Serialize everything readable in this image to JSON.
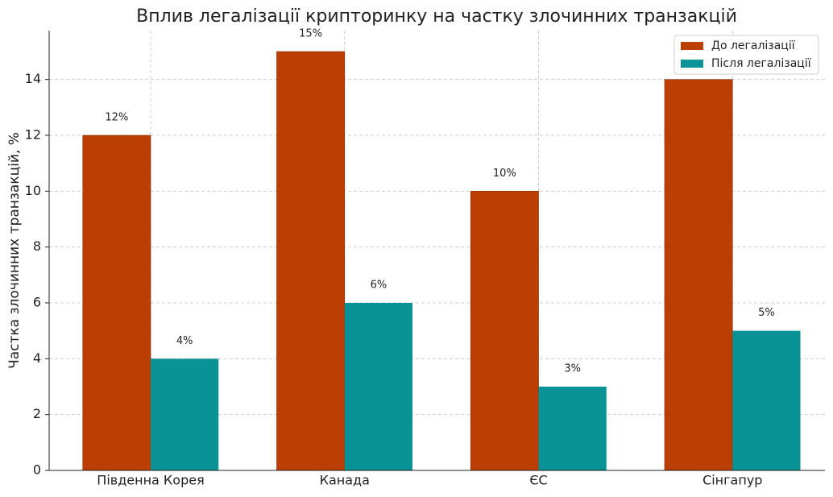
{
  "chart_data": {
    "type": "bar",
    "title": "Вплив легалізації крипторинку на частку злочинних транзакцій",
    "y_label": "Частка злочинних транзакцій, %",
    "categories": [
      "Південна Корея",
      "Канада",
      "ЄС",
      "Сінгапур"
    ],
    "series": [
      {
        "name": "До легалізації",
        "color": "#bb3e03",
        "values": [
          12,
          15,
          10,
          14
        ],
        "value_labels": [
          "12%",
          "15%",
          "10%",
          null
        ]
      },
      {
        "name": "Після легалізації",
        "color": "#0a9396",
        "values": [
          4,
          6,
          3,
          5
        ],
        "value_labels": [
          "4%",
          "6%",
          "3%",
          "5%"
        ]
      }
    ],
    "ylim": [
      0,
      15.75
    ],
    "yticks": [
      0,
      2,
      4,
      6,
      8,
      10,
      12,
      14
    ],
    "grid": true,
    "legend": "upper right"
  }
}
